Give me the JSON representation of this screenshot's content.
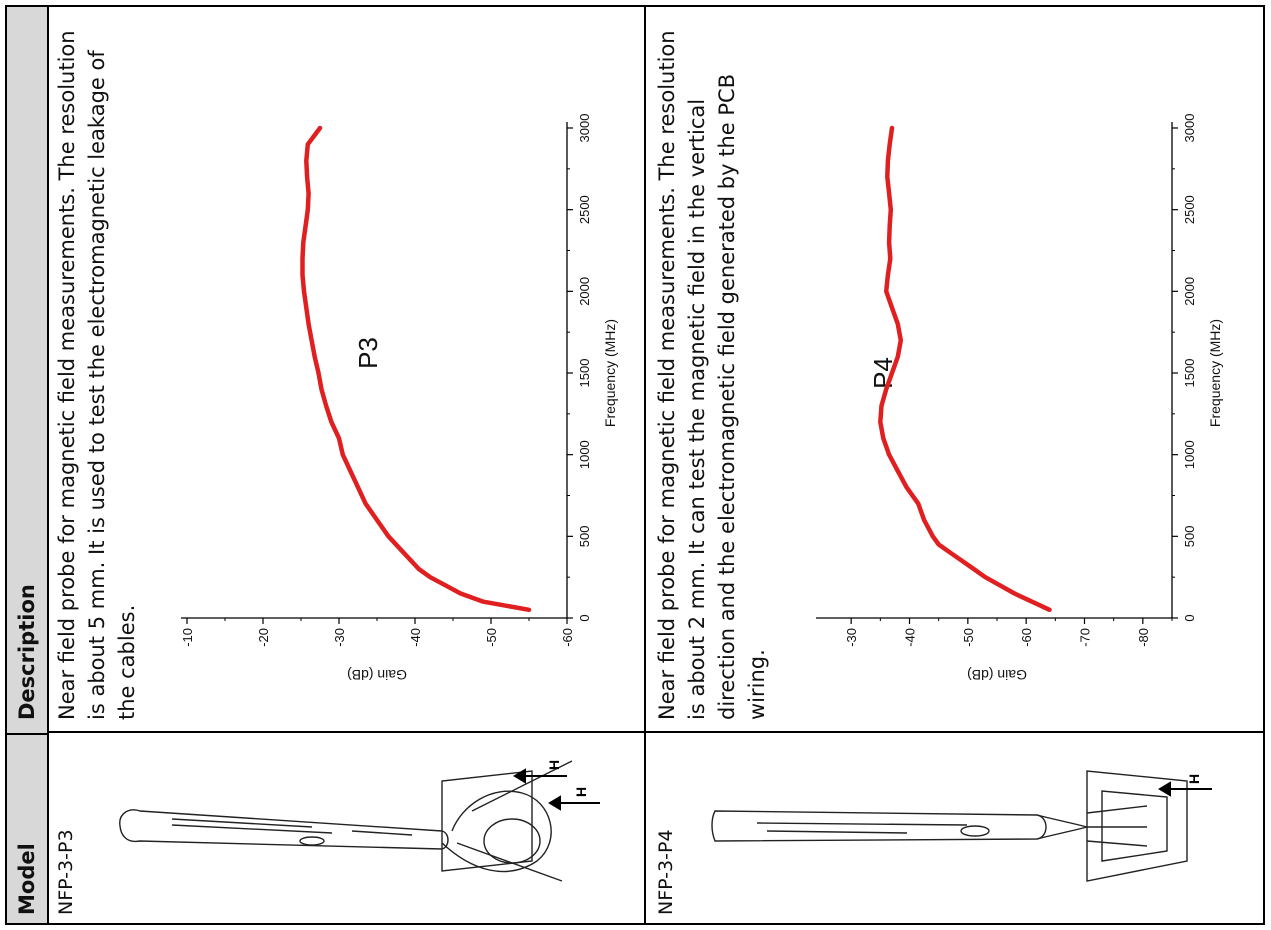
{
  "header": {
    "model_col": "Model",
    "desc_col": "Description"
  },
  "rows": [
    {
      "model": "NFP-3-P3",
      "description": "Near field probe for magnetic field measurements. The resolution is about 5 mm. It is used to test the electromagnetic leakage of the cables.",
      "field_label": "H"
    },
    {
      "model": "NFP-3-P4",
      "description": "Near field probe for magnetic field measurements. The resolution is about 2 mm. It can test the magnetic field in the vertical direction and the electromagnetic field generated by the PCB wiring.",
      "field_label": "H"
    }
  ],
  "chart_data": [
    {
      "type": "line",
      "title": "P3",
      "xlabel": "Frequency (MHz)",
      "ylabel": "Gain (dB)",
      "xlim": [
        0,
        3000
      ],
      "ylim": [
        -60,
        -10
      ],
      "xticks": [
        "0",
        "500",
        "1000",
        "1500",
        "2000",
        "2500",
        "3000"
      ],
      "yticks": [
        "-10",
        "-20",
        "-30",
        "-40",
        "-50",
        "-60"
      ],
      "line_color": "#e02020",
      "x": [
        50,
        100,
        150,
        200,
        250,
        300,
        400,
        500,
        600,
        700,
        800,
        900,
        1000,
        1100,
        1200,
        1300,
        1400,
        1500,
        1600,
        1700,
        1800,
        1900,
        2000,
        2100,
        2200,
        2300,
        2400,
        2500,
        2600,
        2700,
        2800,
        2900,
        3000
      ],
      "y": [
        -55,
        -49,
        -46,
        -44,
        -42,
        -40.5,
        -38.5,
        -36.5,
        -35,
        -33.5,
        -32.5,
        -31.5,
        -30.5,
        -30,
        -29,
        -28.3,
        -27.7,
        -27.3,
        -26.8,
        -26.4,
        -26,
        -25.7,
        -25.4,
        -25.2,
        -25.2,
        -25.3,
        -25.6,
        -25.9,
        -26,
        -25.8,
        -25.7,
        -25.9,
        -27.5
      ]
    },
    {
      "type": "line",
      "title": "P4",
      "xlabel": "Frequency (MHz)",
      "ylabel": "Gain (dB)",
      "xlim": [
        0,
        3000
      ],
      "ylim": [
        -85,
        -25
      ],
      "xticks": [
        "0",
        "500",
        "1000",
        "1500",
        "2000",
        "2500",
        "3000"
      ],
      "yticks": [
        "-30",
        "-40",
        "-50",
        "-60",
        "-70",
        "-80"
      ],
      "line_color": "#e02020",
      "x": [
        50,
        100,
        150,
        200,
        250,
        300,
        350,
        400,
        450,
        500,
        600,
        700,
        800,
        900,
        1000,
        1100,
        1200,
        1300,
        1400,
        1500,
        1600,
        1700,
        1800,
        1900,
        2000,
        2100,
        2200,
        2300,
        2400,
        2500,
        2600,
        2700,
        2800,
        2900,
        3000
      ],
      "y": [
        -64,
        -61,
        -58,
        -55.5,
        -53,
        -51,
        -49,
        -47,
        -45,
        -44,
        -42.5,
        -41.5,
        -39.5,
        -38,
        -36.5,
        -35.5,
        -35,
        -35.2,
        -36,
        -37,
        -38,
        -38.5,
        -38,
        -37,
        -36,
        -36.3,
        -36.7,
        -36.5,
        -36.6,
        -36.8,
        -36.5,
        -36.2,
        -36.3,
        -36.6,
        -37
      ]
    }
  ]
}
